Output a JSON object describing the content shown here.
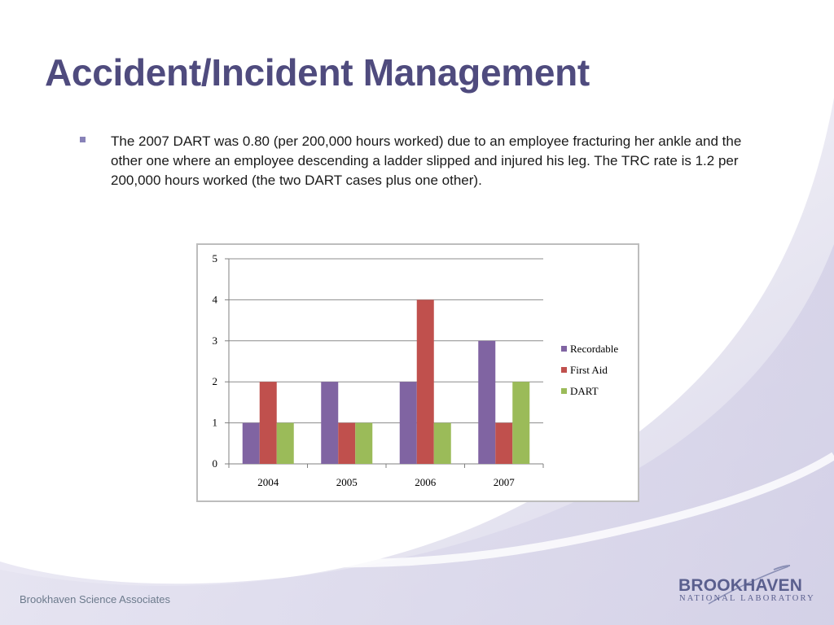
{
  "slide": {
    "title": "Accident/Incident Management",
    "bullets": [
      "The 2007 DART was 0.80 (per 200,000 hours worked) due to an employee fracturing her ankle and the other one where an employee descending a ladder slipped and injured his leg. The TRC rate is 1.2 per 200,000 hours worked (the two DART cases plus one other)."
    ],
    "footer_left": "Brookhaven Science Associates",
    "logo": {
      "word": "BROOKHAVEN",
      "sub": "NATIONAL LABORATORY"
    }
  },
  "colors": {
    "title": "#4f4b7e",
    "Recordable": "#8064a2",
    "First Aid": "#c0504d",
    "DART": "#9bbb59"
  },
  "chart_data": {
    "type": "bar",
    "categories": [
      "2004",
      "2005",
      "2006",
      "2007"
    ],
    "series": [
      {
        "name": "Recordable",
        "values": [
          1,
          2,
          2,
          3
        ]
      },
      {
        "name": "First Aid",
        "values": [
          2,
          1,
          4,
          1
        ]
      },
      {
        "name": "DART",
        "values": [
          1,
          1,
          1,
          2
        ]
      }
    ],
    "ylim": [
      0,
      5
    ],
    "yticks": [
      0,
      1,
      2,
      3,
      4,
      5
    ],
    "grid": true,
    "legend_position": "right"
  }
}
